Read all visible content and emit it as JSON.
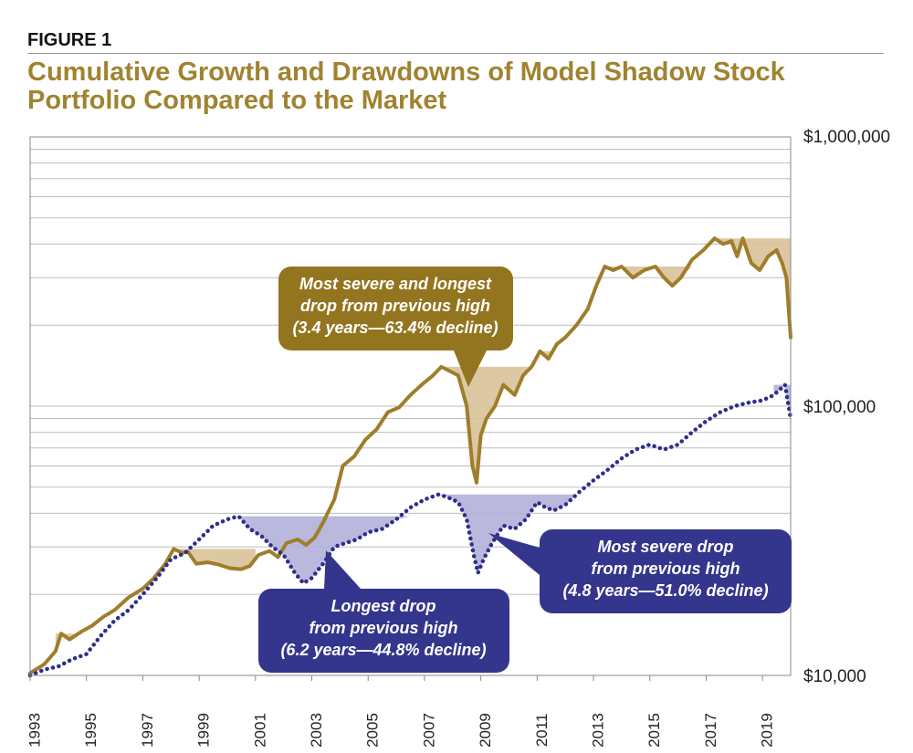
{
  "figure_label": "FIGURE 1",
  "title": "Cumulative Growth and Drawdowns of Model Shadow Stock Portfolio Compared to the Market",
  "colors": {
    "portfolio": "#a07d2a",
    "portfolio_fill": "#d8c39a",
    "market": "#2e2f8a",
    "market_fill": "#b3b0d8",
    "callout_gold": "#93751f",
    "callout_blue": "#34358c",
    "grid": "#bdbdbd"
  },
  "chart_data": {
    "type": "line",
    "title": "Cumulative Growth and Drawdowns of Model Shadow Stock Portfolio Compared to the Market",
    "y_scale": "log",
    "ylim": [
      10000,
      1000000
    ],
    "xlim": [
      1993,
      2020
    ],
    "y_tick_labels": [
      "$1,000,000",
      "$100,000",
      "$10,000"
    ],
    "y_tick_values": [
      1000000,
      100000,
      10000
    ],
    "x_tick_labels": [
      "1993",
      "1995",
      "1997",
      "1999",
      "2001",
      "2003",
      "2005",
      "2007",
      "2009",
      "2011",
      "2013",
      "2015",
      "2017",
      "2019"
    ],
    "x_tick_values": [
      1993,
      1995,
      1997,
      1999,
      2001,
      2003,
      2005,
      2007,
      2009,
      2011,
      2013,
      2015,
      2017,
      2019
    ],
    "series": [
      {
        "name": "Model Shadow Stock Portfolio",
        "style": "solid",
        "x": [
          1993.0,
          1993.5,
          1993.9,
          1994.1,
          1994.4,
          1994.8,
          1995.2,
          1995.6,
          1996.0,
          1996.5,
          1997.0,
          1997.4,
          1997.8,
          1998.1,
          1998.4,
          1998.6,
          1998.9,
          1999.3,
          1999.7,
          2000.1,
          2000.5,
          2000.8,
          2001.1,
          2001.5,
          2001.8,
          2002.1,
          2002.5,
          2002.8,
          2003.1,
          2003.4,
          2003.8,
          2004.1,
          2004.5,
          2004.9,
          2005.3,
          2005.7,
          2006.1,
          2006.5,
          2006.9,
          2007.3,
          2007.6,
          2007.9,
          2008.2,
          2008.5,
          2008.7,
          2008.85,
          2009.0,
          2009.2,
          2009.5,
          2009.8,
          2010.2,
          2010.5,
          2010.8,
          2011.1,
          2011.4,
          2011.7,
          2012.0,
          2012.4,
          2012.8,
          2013.1,
          2013.4,
          2013.7,
          2014.0,
          2014.4,
          2014.8,
          2015.2,
          2015.5,
          2015.8,
          2016.1,
          2016.5,
          2016.9,
          2017.3,
          2017.6,
          2017.9,
          2018.1,
          2018.3,
          2018.6,
          2018.9,
          2019.2,
          2019.5,
          2019.7,
          2019.85,
          2020.0
        ],
        "values": [
          10200,
          11000,
          12300,
          14300,
          13600,
          14500,
          15300,
          16500,
          17500,
          19500,
          21000,
          23000,
          26000,
          29500,
          28500,
          28800,
          26000,
          26300,
          25800,
          25000,
          24800,
          25500,
          28000,
          29000,
          27500,
          31000,
          32000,
          30500,
          32500,
          37000,
          45000,
          60000,
          65000,
          75000,
          82000,
          95000,
          99000,
          110000,
          120000,
          130000,
          140000,
          135000,
          130000,
          100000,
          60000,
          52000,
          78000,
          90000,
          100000,
          120000,
          110000,
          130000,
          140000,
          160000,
          150000,
          170000,
          180000,
          200000,
          230000,
          280000,
          330000,
          320000,
          330000,
          300000,
          320000,
          330000,
          300000,
          280000,
          300000,
          350000,
          380000,
          420000,
          400000,
          410000,
          360000,
          420000,
          340000,
          320000,
          360000,
          380000,
          340000,
          300000,
          180000
        ]
      },
      {
        "name": "Market",
        "style": "dotted",
        "x": [
          1993.0,
          1993.5,
          1994.0,
          1994.5,
          1995.0,
          1995.5,
          1996.0,
          1996.5,
          1997.0,
          1997.5,
          1998.0,
          1998.5,
          1999.0,
          1999.5,
          2000.0,
          2000.4,
          2000.8,
          2001.2,
          2001.6,
          2002.0,
          2002.4,
          2002.7,
          2003.0,
          2003.4,
          2003.8,
          2004.2,
          2004.6,
          2005.0,
          2005.5,
          2006.0,
          2006.5,
          2007.0,
          2007.5,
          2007.8,
          2008.2,
          2008.5,
          2008.75,
          2008.9,
          2009.1,
          2009.4,
          2009.8,
          2010.2,
          2010.6,
          2011.0,
          2011.3,
          2011.6,
          2012.0,
          2012.5,
          2013.0,
          2013.5,
          2014.0,
          2014.5,
          2015.0,
          2015.5,
          2016.0,
          2016.5,
          2017.0,
          2017.5,
          2018.0,
          2018.5,
          2019.0,
          2019.4,
          2019.8,
          2020.0
        ],
        "values": [
          10000,
          10500,
          10800,
          11500,
          12000,
          14000,
          16000,
          17500,
          20000,
          23000,
          27000,
          28500,
          32000,
          36000,
          38000,
          39000,
          35000,
          33000,
          30000,
          28000,
          24000,
          22000,
          23000,
          26000,
          30000,
          31000,
          32000,
          34000,
          35000,
          38000,
          42000,
          45000,
          47000,
          46000,
          44000,
          38000,
          28000,
          24000,
          27000,
          31000,
          36000,
          35000,
          38000,
          44000,
          42000,
          41000,
          43000,
          48000,
          53000,
          58000,
          64000,
          69000,
          72000,
          69000,
          72000,
          80000,
          88000,
          95000,
          100000,
          103000,
          105000,
          110000,
          120000,
          90000
        ]
      }
    ],
    "drawdowns": {
      "portfolio": [
        {
          "start": 1993.9,
          "end": 1994.55,
          "peak": 14300
        },
        {
          "start": 1998.1,
          "end": 2001.0,
          "peak": 29500
        },
        {
          "start": 2002.4,
          "end": 2003.3,
          "peak": 32000
        },
        {
          "start": 2007.6,
          "end": 2010.9,
          "peak": 140000
        },
        {
          "start": 2011.1,
          "end": 2011.55,
          "peak": 160000
        },
        {
          "start": 2013.4,
          "end": 2016.7,
          "peak": 330000
        },
        {
          "start": 2017.3,
          "end": 2020.0,
          "peak": 420000
        }
      ],
      "market": [
        {
          "start": 2000.4,
          "end": 2006.6,
          "peak": 39000
        },
        {
          "start": 2007.5,
          "end": 2012.3,
          "peak": 47000
        },
        {
          "start": 2019.4,
          "end": 2020.0,
          "peak": 120000
        }
      ]
    },
    "annotations": [
      {
        "id": "portfolio-callout",
        "series": "Model Shadow Stock Portfolio",
        "lines": [
          "Most severe and longest",
          "drop from previous high",
          "(3.4 years—63.4% decline)"
        ]
      },
      {
        "id": "longest-drop-callout",
        "series": "Market",
        "lines": [
          "Longest drop",
          "from previous high",
          "(6.2 years—44.8% decline)"
        ]
      },
      {
        "id": "severe-drop-callout",
        "series": "Market",
        "lines": [
          "Most severe drop",
          "from previous high",
          "(4.8 years—51.0% decline)"
        ]
      }
    ]
  }
}
